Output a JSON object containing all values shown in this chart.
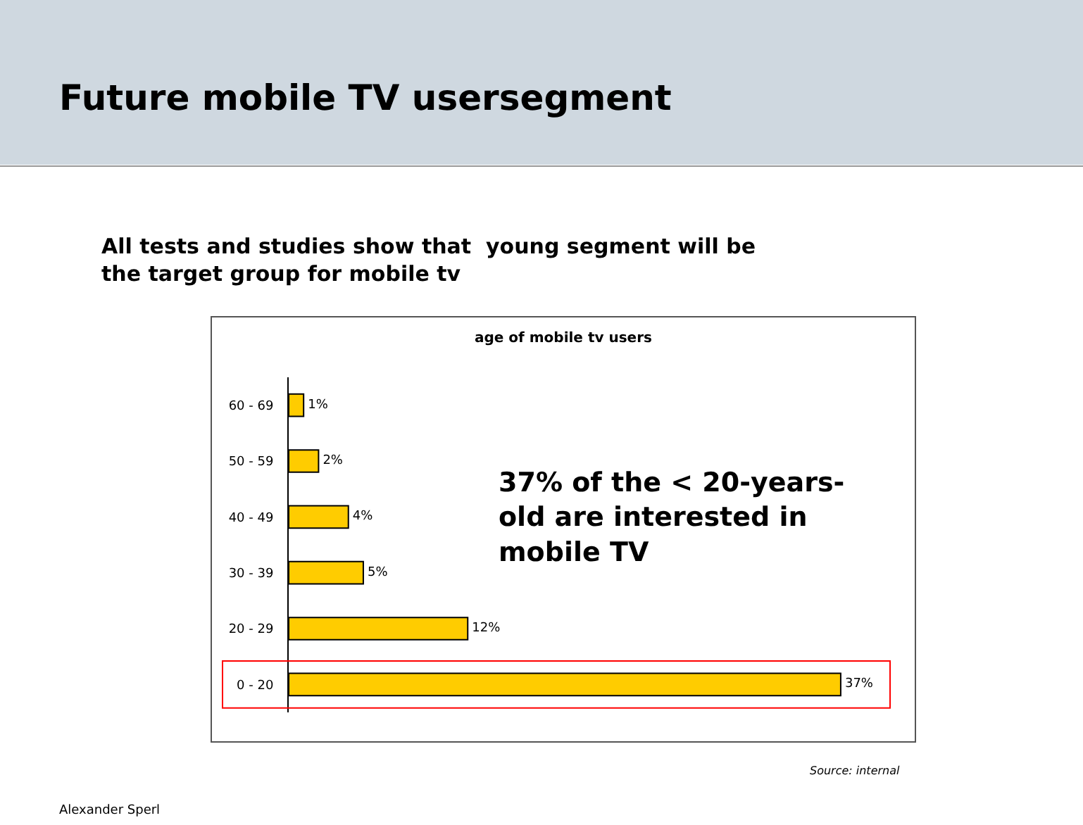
{
  "chart_data": {
    "type": "bar",
    "orientation": "horizontal",
    "title": "Future mobile TV usersegment",
    "subtitle": "All tests and studies show that  young segment will be the target group for mobile tv",
    "categories": [
      "60 - 69",
      "50 - 59",
      "40 - 49",
      "30 - 39",
      "20 - 29",
      "0 - 20"
    ],
    "values": [
      1,
      2,
      4,
      5,
      12,
      37
    ],
    "color": "#ffcc00",
    "value_labels": [
      "1%",
      "2%",
      "4%",
      "5%",
      "12%",
      "37%"
    ],
    "annotations": [
      "age of mobile tv users",
      "37% of the < 20-years-old are interested in mobile TV",
      "Source: internal",
      "Alexander Sperl"
    ],
    "legend": false
  }
}
